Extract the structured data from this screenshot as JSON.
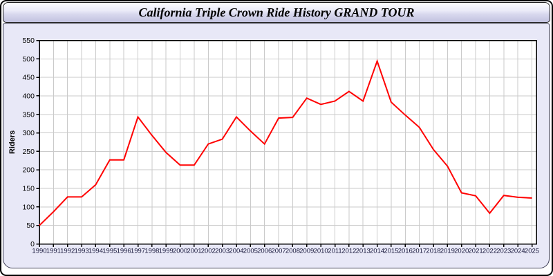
{
  "window": {
    "title": "California Triple Crown Ride History GRAND TOUR"
  },
  "chart_data": {
    "type": "line",
    "title": "California Triple Crown Ride History GRAND TOUR",
    "xlabel": "",
    "ylabel": "Riders",
    "ylim": [
      0,
      550
    ],
    "ytick_step": 50,
    "yticks": [
      0,
      50,
      100,
      150,
      200,
      250,
      300,
      350,
      400,
      450,
      500,
      550
    ],
    "grid": true,
    "legend_position": "none",
    "line_color": "#ff0000",
    "grid_color": "#cacaca",
    "axis_color": "#000000",
    "x_label_color": "#16163a",
    "y_label_color": "#000000",
    "plot_background": "#ffffff",
    "x": [
      "1990",
      "1991",
      "1992",
      "1993",
      "1994",
      "1995",
      "1996",
      "1997",
      "1998",
      "1999",
      "2000",
      "2001",
      "2002",
      "2003",
      "2004",
      "2005",
      "2006",
      "2007",
      "2008",
      "2009",
      "2010",
      "2011",
      "2012",
      "2013",
      "2014",
      "2015",
      "2016",
      "2017",
      "2018",
      "2019",
      "2020",
      "2021",
      "2022",
      "2023",
      "2024",
      "2025"
    ],
    "series": [
      {
        "name": "Riders",
        "values": [
          50,
          87,
          127,
          127,
          160,
          227,
          227,
          343,
          293,
          247,
          213,
          213,
          270,
          283,
          343,
          305,
          270,
          340,
          342,
          394,
          377,
          386,
          412,
          386,
          494,
          383,
          348,
          315,
          255,
          210,
          138,
          130,
          83,
          131,
          126,
          124
        ]
      }
    ]
  }
}
